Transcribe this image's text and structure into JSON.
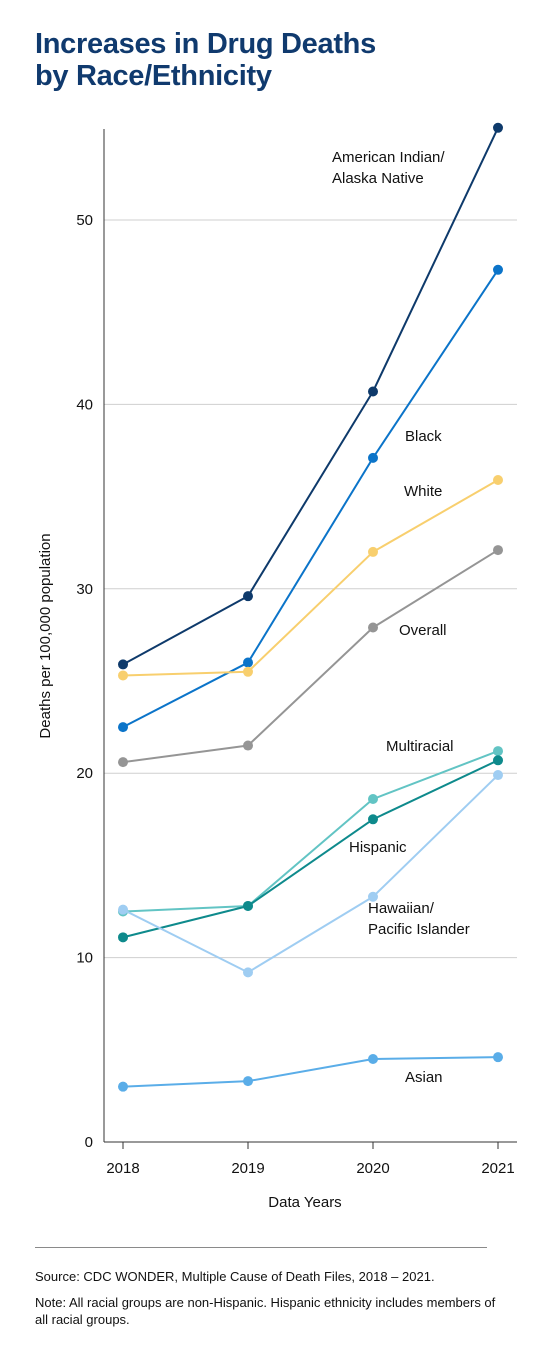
{
  "title_lines": [
    "Increases in Drug Deaths",
    "by Race/Ethnicity"
  ],
  "source": "Source: CDC WONDER, Multiple Cause of Death Files, 2018 – 2021.",
  "note": "Note: All racial groups are non-Hispanic. Hispanic ethnicity includes members of all racial groups.",
  "chart_data": {
    "type": "line",
    "title": "Increases in Drug Deaths by Race/Ethnicity",
    "xlabel": "Data Years",
    "ylabel": "Deaths per 100,000 population",
    "x": [
      "2018",
      "2019",
      "2020",
      "2021"
    ],
    "ylim": [
      0,
      55
    ],
    "yticks": [
      0,
      10,
      20,
      30,
      40,
      50
    ],
    "grid": "horizontal",
    "legend": "direct labels",
    "series": [
      {
        "name": "American Indian/ Alaska Native",
        "label_lines": [
          "American Indian/",
          "Alaska Native"
        ],
        "color": "#0e3a6b",
        "values": [
          25.9,
          29.6,
          40.7,
          55.0
        ]
      },
      {
        "name": "Black",
        "label_lines": [
          "Black"
        ],
        "color": "#0b74c9",
        "values": [
          22.5,
          26.0,
          37.1,
          47.3
        ]
      },
      {
        "name": "White",
        "label_lines": [
          "White"
        ],
        "color": "#f8cf6e",
        "values": [
          25.3,
          25.5,
          32.0,
          35.9
        ]
      },
      {
        "name": "Overall",
        "label_lines": [
          "Overall"
        ],
        "color": "#959595",
        "values": [
          20.6,
          21.5,
          27.9,
          32.1
        ]
      },
      {
        "name": "Multiracial",
        "label_lines": [
          "Multiracial"
        ],
        "color": "#62c4c4",
        "values": [
          12.5,
          12.8,
          18.6,
          21.2
        ]
      },
      {
        "name": "Hispanic",
        "label_lines": [
          "Hispanic"
        ],
        "color": "#0e8a8c",
        "values": [
          11.1,
          12.8,
          17.5,
          20.7
        ]
      },
      {
        "name": "Hawaiian/ Pacific Islander",
        "label_lines": [
          "Hawaiian/",
          "Pacific Islander"
        ],
        "color": "#9fcdf2",
        "values": [
          12.6,
          9.2,
          13.3,
          19.9
        ]
      },
      {
        "name": "Asian",
        "label_lines": [
          "Asian"
        ],
        "color": "#5aade8",
        "values": [
          3.0,
          3.3,
          4.5,
          4.6
        ]
      }
    ]
  }
}
